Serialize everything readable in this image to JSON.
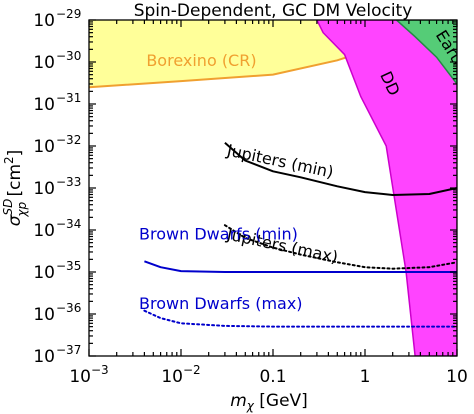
{
  "chart_data": {
    "type": "line",
    "title": "Spin-Dependent, GC DM Velocity",
    "xlabel": "m_χ [GeV]",
    "ylabel": "σ_χp^SD [cm^2]",
    "x_scale": "log",
    "y_scale": "log",
    "xlim": [
      0.001,
      10
    ],
    "ylim": [
      1e-37,
      1e-29
    ],
    "grid": false,
    "x_ticks": [
      {
        "value": 0.001,
        "base": "10",
        "exp": "−3"
      },
      {
        "value": 0.01,
        "base": "10",
        "exp": "−2"
      },
      {
        "value": 0.1,
        "label": "0.1"
      },
      {
        "value": 1,
        "label": "1"
      },
      {
        "value": 10,
        "label": "10"
      }
    ],
    "y_ticks": [
      {
        "value": 1e-37,
        "exp": "−37"
      },
      {
        "value": 1e-36,
        "exp": "−36"
      },
      {
        "value": 1e-35,
        "exp": "−35"
      },
      {
        "value": 1e-34,
        "exp": "−34"
      },
      {
        "value": 1e-33,
        "exp": "−33"
      },
      {
        "value": 1e-32,
        "exp": "−32"
      },
      {
        "value": 1e-31,
        "exp": "−31"
      },
      {
        "value": 1e-30,
        "exp": "−30"
      },
      {
        "value": 1e-29,
        "exp": "−29"
      }
    ],
    "regions": [
      {
        "name": "Borexino (CR)",
        "fill": "#ffff99",
        "stroke": "#f0a030",
        "boundary": [
          [
            0.001,
            2.5e-31
          ],
          [
            0.01,
            3.5e-31
          ],
          [
            0.1,
            5e-31
          ],
          [
            0.5,
            1.1e-30
          ],
          [
            1,
            1.8e-30
          ],
          [
            3,
            4.5e-30
          ],
          [
            10,
            1.5e-29
          ]
        ]
      },
      {
        "name": "DD",
        "fill": "#ff44ff",
        "stroke": "#cc00cc",
        "polygon": [
          [
            0.3,
            1e-29
          ],
          [
            10,
            1e-29
          ],
          [
            10,
            1e-37
          ],
          [
            3.5,
            1e-37
          ],
          [
            2.8,
            1e-35
          ],
          [
            1.7,
            1e-32
          ],
          [
            0.9,
            1.5e-31
          ],
          [
            0.6,
            1.5e-30
          ],
          [
            0.35,
            5e-30
          ]
        ]
      },
      {
        "name": "Earth",
        "fill": "#55cc77",
        "stroke": "#228844",
        "polygon": [
          [
            2.2,
            1e-29
          ],
          [
            10,
            1e-29
          ],
          [
            10,
            3e-31
          ],
          [
            6,
            1.3e-30
          ],
          [
            3.5,
            4e-30
          ]
        ]
      }
    ],
    "series": [
      {
        "name": "Jupiters (min)",
        "color": "#000000",
        "style": "solid",
        "x": [
          0.03,
          0.05,
          0.1,
          0.2,
          0.5,
          1,
          2,
          5,
          10
        ],
        "y": [
          1.2e-32,
          4.5e-33,
          2.5e-33,
          1.8e-33,
          1.1e-33,
          8e-34,
          6.8e-34,
          7.2e-34,
          1e-33
        ]
      },
      {
        "name": "Jupiters (max)",
        "color": "#000000",
        "style": "dotted",
        "x": [
          0.03,
          0.05,
          0.1,
          0.2,
          0.5,
          1,
          2,
          5,
          10
        ],
        "y": [
          1.3e-34,
          6.5e-35,
          3.8e-35,
          2.6e-35,
          1.7e-35,
          1.3e-35,
          1.2e-35,
          1.3e-35,
          1.7e-35
        ]
      },
      {
        "name": "Brown Dwarfs (min)",
        "color": "#0000cc",
        "style": "solid",
        "x": [
          0.004,
          0.006,
          0.01,
          0.03,
          0.1,
          0.5,
          1,
          5,
          10
        ],
        "y": [
          1.8e-35,
          1.3e-35,
          1.05e-35,
          1e-35,
          1e-35,
          1e-35,
          1e-35,
          1e-35,
          1e-35
        ]
      },
      {
        "name": "Brown Dwarfs (max)",
        "color": "#0000cc",
        "style": "dotted",
        "x": [
          0.004,
          0.006,
          0.01,
          0.03,
          0.1,
          0.5,
          1,
          10
        ],
        "y": [
          1.2e-36,
          8e-37,
          6e-37,
          5.2e-37,
          5e-37,
          5e-37,
          5e-37,
          5e-37
        ]
      }
    ],
    "annotations": [
      {
        "text": "Borexino (CR)",
        "x": 0.0042,
        "y": 8e-31,
        "color": "#f0a030",
        "rotate": 0
      },
      {
        "text": "DD",
        "x": 1.45,
        "y": 5e-31,
        "color": "#000000",
        "rotate": 65
      },
      {
        "text": "Earth",
        "x": 5.8,
        "y": 4.5e-30,
        "color": "#000000",
        "rotate": 58
      },
      {
        "text": "Jupiters (min)",
        "x": 0.031,
        "y": 6e-33,
        "color": "#000000",
        "rotate": 12
      },
      {
        "text": "Jupiters (max)",
        "x": 0.031,
        "y": 6e-35,
        "color": "#000000",
        "rotate": 12
      },
      {
        "text": "Brown Dwarfs (min)",
        "x": 0.0035,
        "y": 6e-35,
        "color": "#0000cc",
        "rotate": 0
      },
      {
        "text": "Brown Dwarfs (max)",
        "x": 0.0035,
        "y": 1.3e-36,
        "color": "#0000cc",
        "rotate": 0
      }
    ]
  }
}
